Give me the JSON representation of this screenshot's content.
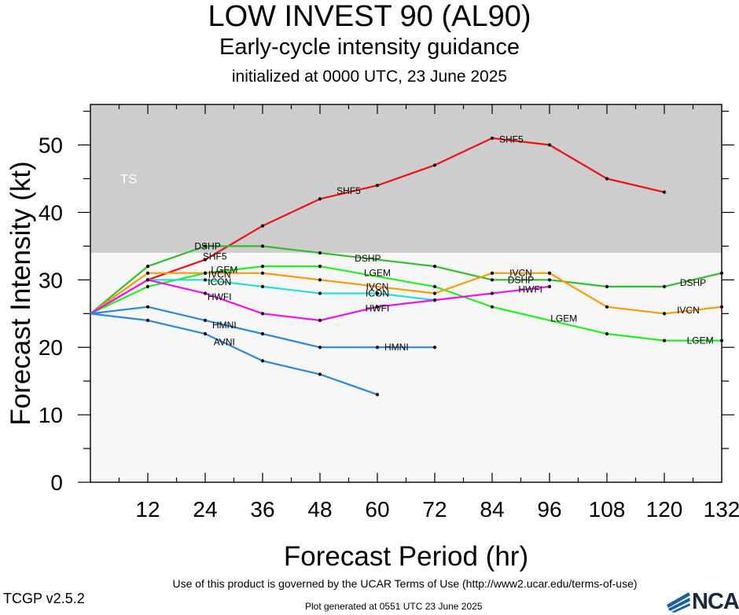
{
  "header": {
    "title": "LOW INVEST 90 (AL90)",
    "subtitle": "Early-cycle intensity guidance",
    "initialized": "initialized at 0000 UTC, 23 June 2025"
  },
  "footer": {
    "terms": "Use of this product is governed by the UCAR Terms of Use (http://www2.ucar.edu/terms-of-use)",
    "version": "TCGP v2.5.2",
    "generated": "Plot generated at 0551 UTC   23 June 2025",
    "logo_text": "NCAR"
  },
  "chart_data": {
    "type": "line",
    "xlabel": "Forecast Period (hr)",
    "ylabel": "Forecast Intensity (kt)",
    "xlim": [
      0,
      132
    ],
    "ylim": [
      0,
      56
    ],
    "xticks": [
      12,
      24,
      36,
      48,
      60,
      72,
      84,
      96,
      108,
      120,
      132
    ],
    "yticks": [
      0,
      10,
      20,
      30,
      40,
      50
    ],
    "bands": [
      {
        "label": "TS",
        "from": 34,
        "to": 56,
        "color": "#cdcdcd"
      },
      {
        "label": "",
        "from": 0,
        "to": 34,
        "color": "#f7f7f7"
      }
    ],
    "series": [
      {
        "name": "SHF5",
        "color": "#ee1111",
        "x": [
          0,
          12,
          24,
          36,
          48,
          60,
          72,
          84,
          96,
          108,
          120
        ],
        "y": [
          25,
          30,
          33,
          38,
          42,
          44,
          47,
          51,
          50,
          45,
          43
        ]
      },
      {
        "name": "DSHP",
        "color": "#33bb33",
        "x": [
          0,
          12,
          24,
          36,
          48,
          72,
          84,
          96,
          108,
          120,
          132
        ],
        "y": [
          25,
          32,
          35,
          35,
          34,
          32,
          30,
          30,
          29,
          29,
          31
        ]
      },
      {
        "name": "LGEM",
        "color": "#22ee22",
        "x": [
          0,
          12,
          24,
          36,
          48,
          72,
          84,
          108,
          120,
          132
        ],
        "y": [
          25,
          29,
          31,
          32,
          32,
          29,
          26,
          22,
          21,
          21
        ]
      },
      {
        "name": "IVCN",
        "color": "#ff9900",
        "x": [
          0,
          12,
          24,
          36,
          48,
          72,
          84,
          96,
          108,
          120,
          132
        ],
        "y": [
          25,
          31,
          31,
          31,
          30,
          28,
          31,
          31,
          26,
          25,
          26
        ]
      },
      {
        "name": "ICON",
        "color": "#22dddd",
        "x": [
          0,
          12,
          24,
          36,
          48,
          60,
          72
        ],
        "y": [
          25,
          30,
          30,
          29,
          28,
          28,
          27
        ]
      },
      {
        "name": "HWFI",
        "color": "#ee11ee",
        "x": [
          0,
          12,
          24,
          36,
          48,
          60,
          72,
          84,
          96
        ],
        "y": [
          25,
          30,
          28,
          25,
          24,
          26,
          27,
          28,
          29
        ]
      },
      {
        "name": "HMNI",
        "color": "#2b88dd",
        "x": [
          0,
          12,
          24,
          36,
          48,
          60,
          72
        ],
        "y": [
          25,
          26,
          24,
          22,
          20,
          20,
          20
        ]
      },
      {
        "name": "AVNI",
        "color": "#2b88dd",
        "x": [
          0,
          12,
          24,
          36,
          48,
          60
        ],
        "y": [
          25,
          24,
          22,
          18,
          16,
          13
        ]
      }
    ],
    "line_labels": [
      {
        "text": "SHF5",
        "x": 26,
        "y": 33.5
      },
      {
        "text": "SHF5",
        "x": 54,
        "y": 43.2
      },
      {
        "text": "SHF5",
        "x": 88,
        "y": 50.8
      },
      {
        "text": "DSHP",
        "x": 24.5,
        "y": 35
      },
      {
        "text": "DSHP",
        "x": 58,
        "y": 33.2
      },
      {
        "text": "DSHP",
        "x": 90,
        "y": 30
      },
      {
        "text": "DSHP",
        "x": 126,
        "y": 29.6
      },
      {
        "text": "LGEM",
        "x": 28,
        "y": 31.5
      },
      {
        "text": "LGEM",
        "x": 60,
        "y": 31
      },
      {
        "text": "LGEM",
        "x": 99,
        "y": 24.3
      },
      {
        "text": "LGEM",
        "x": 127.5,
        "y": 21
      },
      {
        "text": "IVCN",
        "x": 27,
        "y": 30.8
      },
      {
        "text": "IVCN",
        "x": 60,
        "y": 29
      },
      {
        "text": "IVCN",
        "x": 90,
        "y": 31
      },
      {
        "text": "IVCN",
        "x": 125,
        "y": 25.5
      },
      {
        "text": "ICON",
        "x": 27,
        "y": 29.7
      },
      {
        "text": "ICON",
        "x": 60,
        "y": 28
      },
      {
        "text": "HWFI",
        "x": 27,
        "y": 27.5
      },
      {
        "text": "HWFI",
        "x": 60,
        "y": 25.8
      },
      {
        "text": "HWFI",
        "x": 92,
        "y": 28.6
      },
      {
        "text": "HMNI",
        "x": 28,
        "y": 23.3
      },
      {
        "text": "HMNI",
        "x": 64,
        "y": 20
      },
      {
        "text": "AVNI",
        "x": 28,
        "y": 20.8
      }
    ],
    "band_label": {
      "text": "TS",
      "x": 8,
      "y": 45
    },
    "grid": false
  }
}
